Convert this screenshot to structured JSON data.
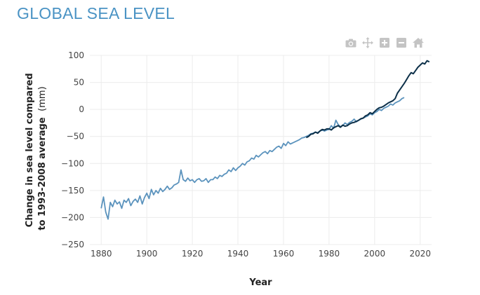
{
  "page": {
    "title": "GLOBAL SEA LEVEL"
  },
  "toolbar": {
    "buttons": [
      {
        "name": "download-plot-button",
        "icon": "camera-icon"
      },
      {
        "name": "pan-button",
        "icon": "move-arrows-icon"
      },
      {
        "name": "zoom-in-button",
        "icon": "plus-square-icon"
      },
      {
        "name": "zoom-out-button",
        "icon": "minus-square-icon"
      },
      {
        "name": "reset-axes-button",
        "icon": "home-icon"
      }
    ],
    "color": "#c4c4c4"
  },
  "chart_data": {
    "type": "line",
    "xlabel": "Year",
    "ylabel_bold_line1": "Change in sea level compared",
    "ylabel_bold_line2": "to 1993-2008 average",
    "ylabel_unit": "(mm)",
    "xlim": [
      1875,
      2025
    ],
    "ylim": [
      -250,
      100
    ],
    "xticks": [
      1880,
      1900,
      1920,
      1940,
      1960,
      1980,
      2000,
      2020
    ],
    "yticks": [
      100,
      50,
      0,
      -50,
      -100,
      -150,
      -200,
      -250
    ],
    "grid": true,
    "series": [
      {
        "color": "#5b93bd",
        "x": [
          1880,
          1881,
          1882,
          1883,
          1884,
          1885,
          1886,
          1887,
          1888,
          1889,
          1890,
          1891,
          1892,
          1893,
          1894,
          1895,
          1896,
          1897,
          1898,
          1899,
          1900,
          1901,
          1902,
          1903,
          1904,
          1905,
          1906,
          1907,
          1908,
          1909,
          1910,
          1911,
          1912,
          1913,
          1914,
          1915,
          1916,
          1917,
          1918,
          1919,
          1920,
          1921,
          1922,
          1923,
          1924,
          1925,
          1926,
          1927,
          1928,
          1929,
          1930,
          1931,
          1932,
          1933,
          1934,
          1935,
          1936,
          1937,
          1938,
          1939,
          1940,
          1941,
          1942,
          1943,
          1944,
          1945,
          1946,
          1947,
          1948,
          1949,
          1950,
          1951,
          1952,
          1953,
          1954,
          1955,
          1956,
          1957,
          1958,
          1959,
          1960,
          1961,
          1962,
          1963,
          1964,
          1965,
          1966,
          1967,
          1968,
          1969,
          1970,
          1971,
          1972,
          1973,
          1974,
          1975,
          1976,
          1977,
          1978,
          1979,
          1980,
          1981,
          1982,
          1983,
          1984,
          1985,
          1986,
          1987,
          1988,
          1989,
          1990,
          1991,
          1992,
          1993,
          1994,
          1995,
          1996,
          1997,
          1998,
          1999,
          2000,
          2001,
          2002,
          2003,
          2004,
          2005,
          2006,
          2007,
          2008,
          2009,
          2010,
          2011,
          2012,
          2013
        ],
        "y": [
          -183,
          -162,
          -190,
          -203,
          -172,
          -180,
          -168,
          -175,
          -171,
          -183,
          -168,
          -172,
          -165,
          -178,
          -170,
          -166,
          -172,
          -160,
          -175,
          -163,
          -155,
          -165,
          -148,
          -158,
          -150,
          -155,
          -146,
          -152,
          -148,
          -142,
          -148,
          -145,
          -140,
          -138,
          -135,
          -112,
          -130,
          -133,
          -127,
          -132,
          -130,
          -135,
          -130,
          -128,
          -133,
          -132,
          -128,
          -135,
          -130,
          -130,
          -125,
          -128,
          -122,
          -124,
          -120,
          -118,
          -112,
          -115,
          -108,
          -113,
          -108,
          -105,
          -100,
          -103,
          -97,
          -95,
          -90,
          -92,
          -85,
          -88,
          -84,
          -80,
          -78,
          -82,
          -76,
          -78,
          -74,
          -70,
          -68,
          -72,
          -63,
          -67,
          -60,
          -64,
          -62,
          -60,
          -58,
          -56,
          -53,
          -52,
          -50,
          -48,
          -45,
          -44,
          -42,
          -43,
          -40,
          -38,
          -40,
          -38,
          -37,
          -30,
          -35,
          -20,
          -28,
          -32,
          -30,
          -25,
          -28,
          -24,
          -22,
          -18,
          -23,
          -20,
          -18,
          -16,
          -14,
          -12,
          -8,
          -10,
          -6,
          -4,
          0,
          -2,
          2,
          4,
          6,
          10,
          8,
          12,
          14,
          16,
          20,
          22
        ]
      },
      {
        "color": "#0d3049",
        "x": [
          1970,
          1971,
          1972,
          1973,
          1974,
          1975,
          1976,
          1977,
          1978,
          1979,
          1980,
          1981,
          1982,
          1983,
          1984,
          1985,
          1986,
          1987,
          1988,
          1989,
          1990,
          1991,
          1992,
          1993,
          1994,
          1995,
          1996,
          1997,
          1998,
          1999,
          2000,
          2001,
          2002,
          2003,
          2004,
          2005,
          2006,
          2007,
          2008,
          2009,
          2010,
          2011,
          2012,
          2013,
          2014,
          2015,
          2016,
          2017,
          2018,
          2019,
          2020,
          2021,
          2022,
          2023,
          2024
        ],
        "y": [
          -52,
          -50,
          -46,
          -45,
          -42,
          -44,
          -40,
          -37,
          -38,
          -36,
          -36,
          -38,
          -34,
          -32,
          -30,
          -33,
          -29,
          -31,
          -30,
          -27,
          -25,
          -24,
          -22,
          -20,
          -17,
          -16,
          -12,
          -10,
          -6,
          -8,
          -4,
          0,
          3,
          4,
          6,
          9,
          12,
          14,
          16,
          20,
          30,
          36,
          42,
          48,
          55,
          62,
          68,
          66,
          72,
          78,
          82,
          86,
          84,
          90,
          88
        ]
      }
    ]
  }
}
